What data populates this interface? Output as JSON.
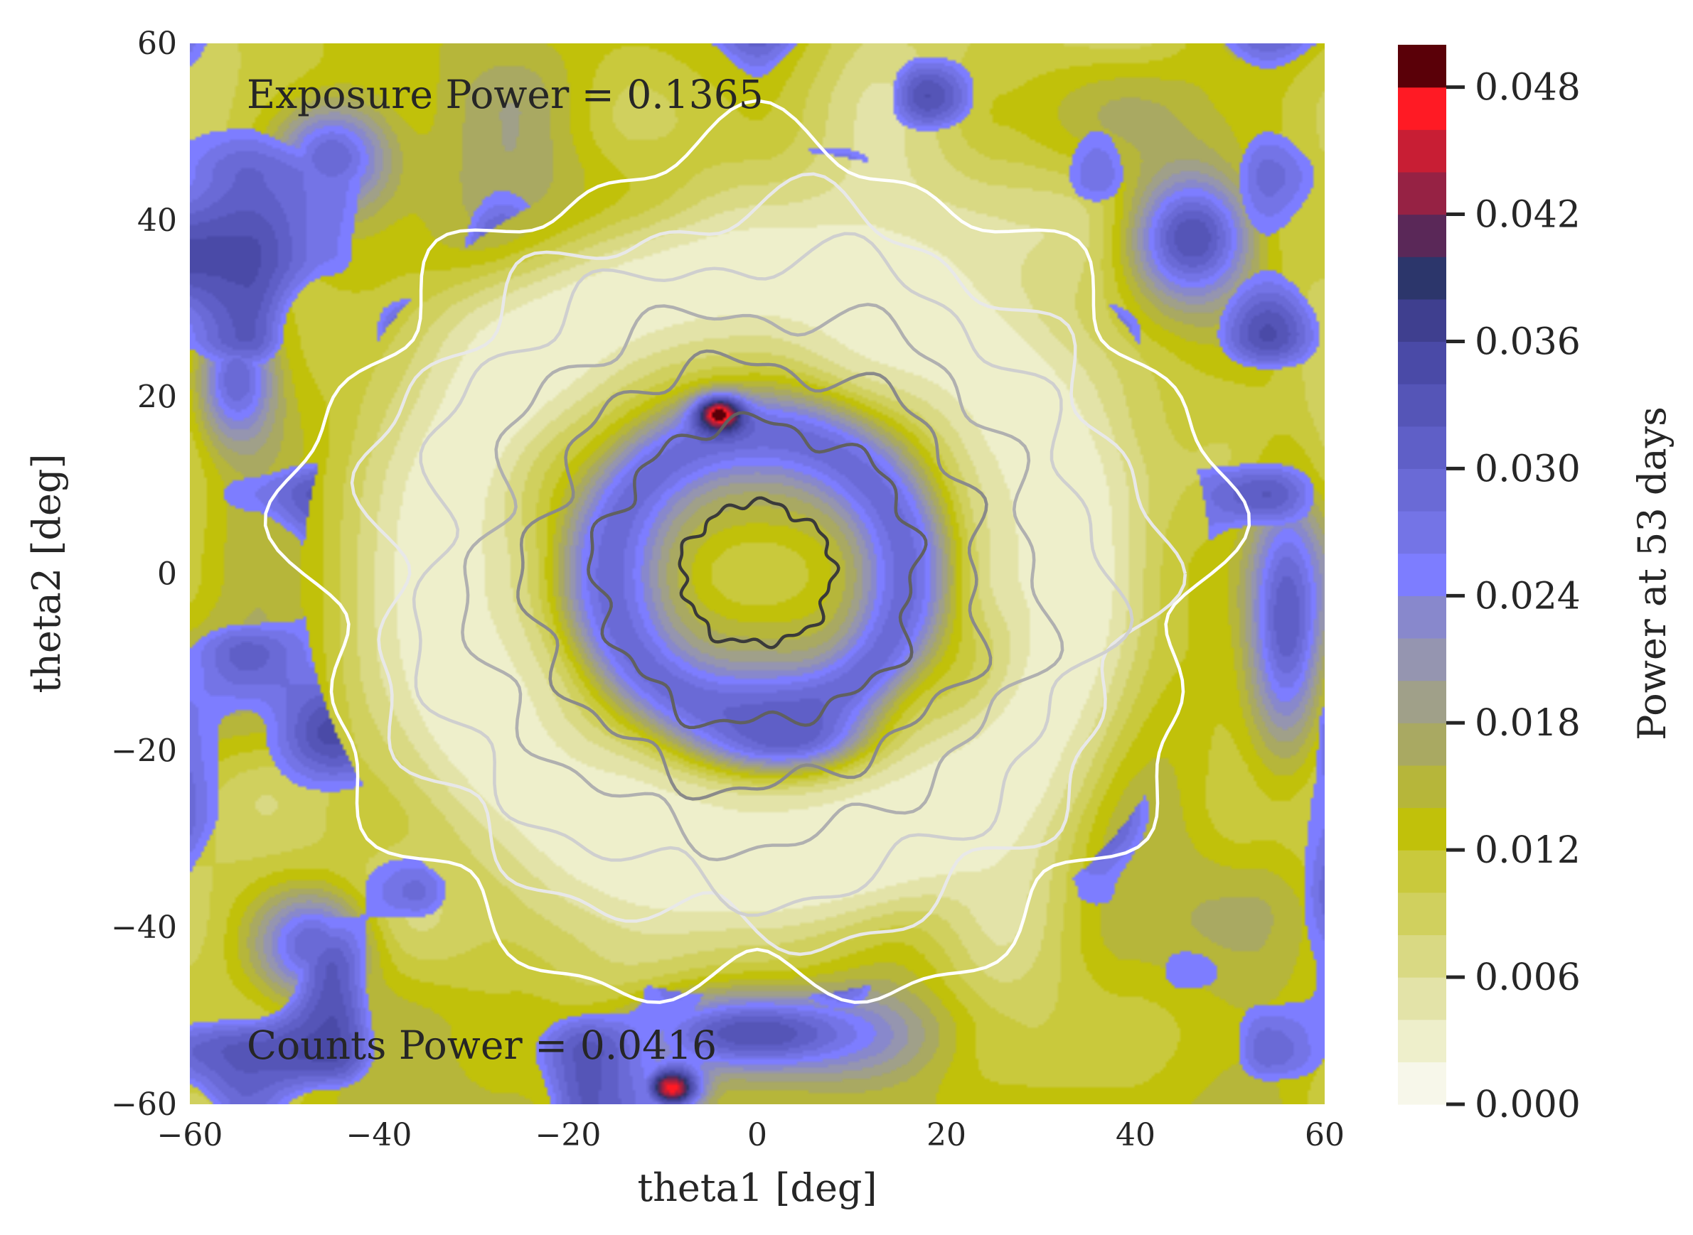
{
  "chart_data": {
    "type": "heatmap",
    "subtype": "filled contour map with overlaid line contours",
    "xlabel": "theta1 [deg]",
    "ylabel": "theta2 [deg]",
    "xlim": [
      -60,
      60
    ],
    "ylim": [
      -60,
      60
    ],
    "x_ticks": [
      -60,
      -40,
      -20,
      0,
      20,
      40,
      60
    ],
    "y_ticks": [
      -60,
      -40,
      -20,
      0,
      20,
      40,
      60
    ],
    "colorbar": {
      "label": "Power at 53 days",
      "range": [
        0.0,
        0.05
      ],
      "ticks": [
        0.0,
        0.006,
        0.012,
        0.018,
        0.024,
        0.03,
        0.036,
        0.042,
        0.048
      ],
      "tick_labels": [
        "0.000",
        "0.006",
        "0.012",
        "0.018",
        "0.024",
        "0.030",
        "0.036",
        "0.042",
        "0.048"
      ],
      "levels": [
        0.0,
        0.002,
        0.004,
        0.006,
        0.008,
        0.01,
        0.012,
        0.014,
        0.016,
        0.018,
        0.02,
        0.022,
        0.024,
        0.026,
        0.028,
        0.03,
        0.032,
        0.034,
        0.036,
        0.038,
        0.04,
        0.042,
        0.044,
        0.046,
        0.048,
        0.05
      ],
      "colors": [
        "#f7f7ea",
        "#eeefcb",
        "#e3e3a8",
        "#d9d983",
        "#d0d05e",
        "#c9c93c",
        "#c1c10a",
        "#b6b63a",
        "#a9a962",
        "#a0a089",
        "#9595b0",
        "#8888cc",
        "#7d7dff",
        "#7474e6",
        "#6a6ad6",
        "#5f5fc7",
        "#5555b7",
        "#4a4aa7",
        "#3f3f8f",
        "#2c366b",
        "#5a2858",
        "#962244",
        "#c81e34",
        "#ff1a24",
        "#5a0008"
      ]
    },
    "annotations": [
      "Exposure Power = 0.1365",
      "Counts Power = 0.0416"
    ],
    "grid": false,
    "field_features": [
      {
        "x": 0,
        "y": 0,
        "value": 0.01,
        "sx": 10,
        "sy": 7
      },
      {
        "x": 0,
        "y": 0,
        "value": 0.03,
        "ring_radius": 16,
        "ring_width": 5
      },
      {
        "x": 0,
        "y": 0,
        "value": 0.002,
        "ring_radius": 34,
        "ring_width": 10
      },
      {
        "x": -4,
        "y": 18,
        "value": 0.05,
        "sx": 2.5,
        "sy": 2
      },
      {
        "x": -9,
        "y": -58,
        "value": 0.05,
        "sx": 3,
        "sy": 2.5
      },
      {
        "x": 0,
        "y": -52,
        "value": 0.034,
        "sx": 15,
        "sy": 5
      },
      {
        "x": 46,
        "y": 38,
        "value": 0.034,
        "sx": 7,
        "sy": 8
      },
      {
        "x": -45,
        "y": 47,
        "value": 0.03,
        "sx": 6,
        "sy": 6
      },
      {
        "x": -55,
        "y": 22,
        "value": 0.03,
        "sx": 4,
        "sy": 7
      },
      {
        "x": 56,
        "y": -5,
        "value": 0.032,
        "sx": 4,
        "sy": 14
      },
      {
        "x": -47,
        "y": -42,
        "value": 0.03,
        "sx": 6,
        "sy": 6
      },
      {
        "x": 3,
        "y": -18,
        "value": 0.032,
        "sx": 8,
        "sy": 4
      }
    ],
    "line_contours": {
      "count": 7,
      "radii_deg": [
        48,
        41,
        36,
        30,
        24,
        17,
        8
      ],
      "center": [
        0,
        0
      ],
      "shades": [
        "#ffffff",
        "#e8e8e8",
        "#cfcfcf",
        "#b0b0b0",
        "#8a8a8a",
        "#606060",
        "#3a3a3a"
      ]
    }
  }
}
